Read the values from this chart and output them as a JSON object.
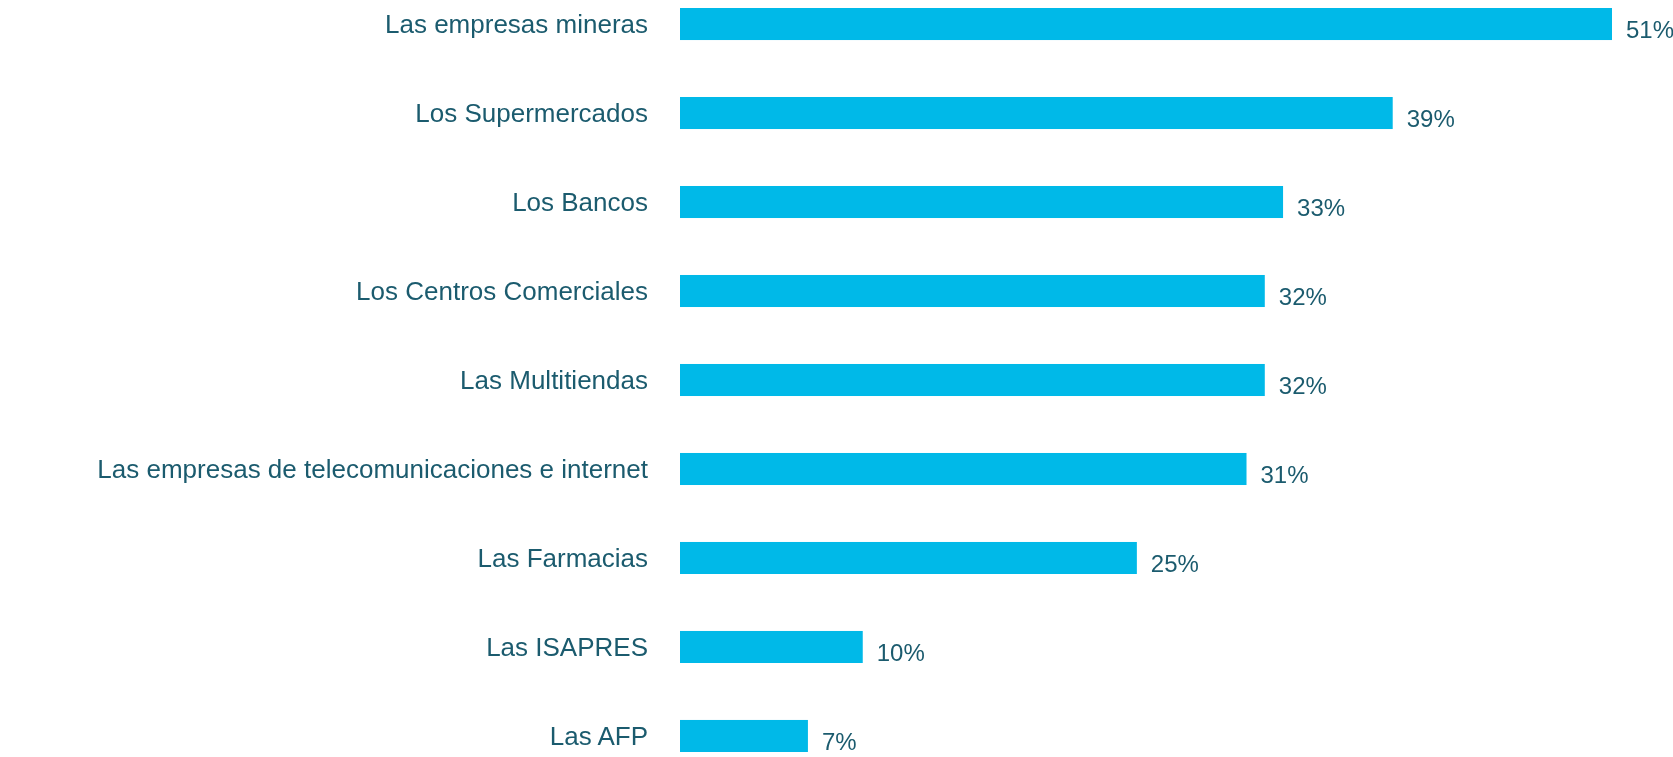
{
  "chart_data": {
    "type": "bar",
    "orientation": "horizontal",
    "categories": [
      "Las empresas mineras",
      "Los Supermercados",
      "Los Bancos",
      "Los Centros Comerciales",
      "Las Multitiendas",
      "Las empresas de telecomunicaciones e internet",
      "Las Farmacias",
      "Las ISAPRES",
      "Las AFP"
    ],
    "values": [
      51,
      39,
      33,
      32,
      32,
      31,
      25,
      10,
      7
    ],
    "value_labels": [
      "51%",
      "39%",
      "33%",
      "32%",
      "32%",
      "31%",
      "25%",
      "10%",
      "7%"
    ],
    "color": "#00b9e8"
  }
}
